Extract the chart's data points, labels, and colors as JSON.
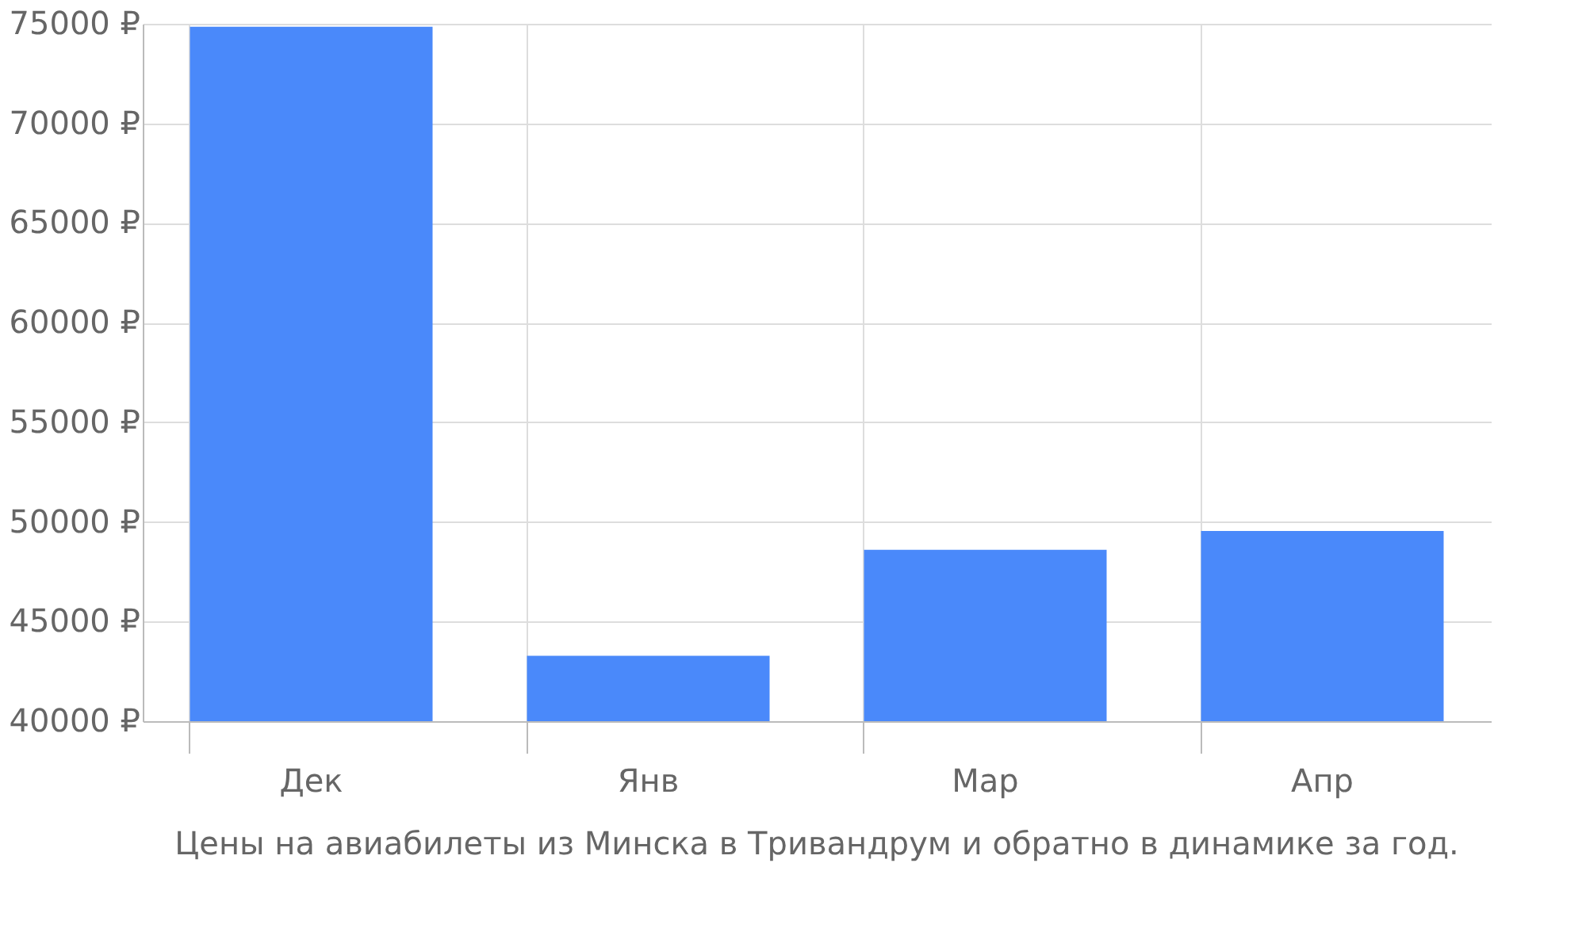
{
  "chart_data": {
    "type": "bar",
    "title": "Цены на авиабилеты из Минска в Тривандрум и обратно в динамике за год.",
    "categories": [
      "Дек",
      "Янв",
      "Мар",
      "Апр"
    ],
    "values": [
      74850,
      43280,
      48600,
      49550
    ],
    "color": "#4a89fa",
    "ylim": [
      40000,
      75000
    ],
    "yticks": [
      {
        "value": 40000,
        "label": "40000 ₽"
      },
      {
        "value": 45000,
        "label": "45000 ₽"
      },
      {
        "value": 50000,
        "label": "50000 ₽"
      },
      {
        "value": 55000,
        "label": "55000 ₽"
      },
      {
        "value": 60000,
        "label": "60000 ₽"
      },
      {
        "value": 65000,
        "label": "65000 ₽"
      },
      {
        "value": 70000,
        "label": "70000 ₽"
      },
      {
        "value": 75000,
        "label": "75000 ₽"
      }
    ],
    "grid": true
  }
}
